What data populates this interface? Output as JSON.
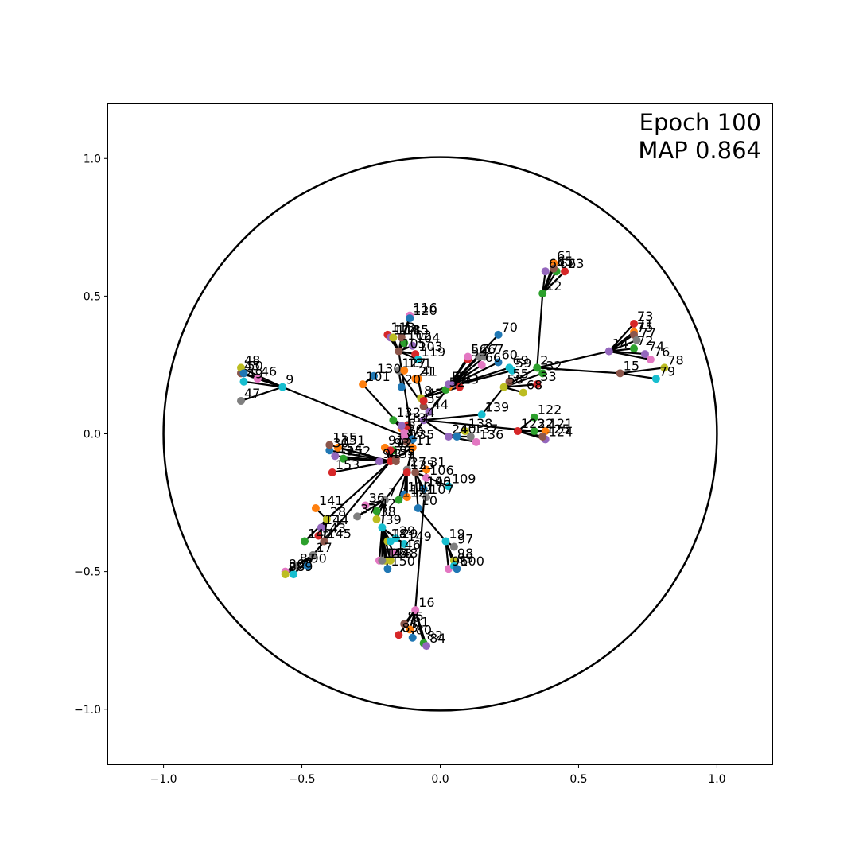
{
  "chart_data": {
    "type": "scatter",
    "title": "",
    "xlabel": "",
    "ylabel": "",
    "xlim": [
      -1.2,
      1.2
    ],
    "ylim": [
      -1.2,
      1.2
    ],
    "grid": false,
    "legend": "none",
    "x_ticks": [
      {
        "value": -1.0,
        "label": "−1.0"
      },
      {
        "value": -0.5,
        "label": "−0.5"
      },
      {
        "value": 0.0,
        "label": "0.0"
      },
      {
        "value": 0.5,
        "label": "0.5"
      },
      {
        "value": 1.0,
        "label": "1.0"
      }
    ],
    "y_ticks": [
      {
        "value": 1.0,
        "label": "1.0"
      },
      {
        "value": 0.5,
        "label": "0.5"
      },
      {
        "value": 0.0,
        "label": "0.0"
      },
      {
        "value": -0.5,
        "label": "−0.5"
      },
      {
        "value": -1.0,
        "label": "−1.0"
      }
    ],
    "annotations": [
      "Epoch 100",
      "MAP 0.864"
    ],
    "unit_circle": {
      "cx": 0,
      "cy": 0,
      "r": 1.0
    },
    "colors": [
      "#1f77b4",
      "#ff7f0e",
      "#2ca02c",
      "#d62728",
      "#9467bd",
      "#8c564b",
      "#e377c2",
      "#7f7f7f",
      "#bcbd22",
      "#17becf"
    ],
    "nodes": [
      {
        "label": "0",
        "x": -0.1,
        "y": -0.02
      },
      {
        "label": "1",
        "x": -0.14,
        "y": 0.02
      },
      {
        "label": "2",
        "x": 0.35,
        "y": 0.24
      },
      {
        "label": "3",
        "x": -0.18,
        "y": -0.1
      },
      {
        "label": "4",
        "x": -0.06,
        "y": 0.05
      },
      {
        "label": "5",
        "x": -0.06,
        "y": 0.1
      },
      {
        "label": "6",
        "x": -0.13,
        "y": 0.01
      },
      {
        "label": "7",
        "x": -0.2,
        "y": -0.24
      },
      {
        "label": "8",
        "x": -0.07,
        "y": 0.13
      },
      {
        "label": "9",
        "x": -0.57,
        "y": 0.17
      },
      {
        "label": "10",
        "x": -0.08,
        "y": -0.27
      },
      {
        "label": "11",
        "x": -0.1,
        "y": -0.05
      },
      {
        "label": "12",
        "x": 0.37,
        "y": 0.51
      },
      {
        "label": "13",
        "x": -0.12,
        "y": 0.03
      },
      {
        "label": "14",
        "x": 0.61,
        "y": 0.3
      },
      {
        "label": "15",
        "x": 0.65,
        "y": 0.22
      },
      {
        "label": "16",
        "x": -0.09,
        "y": -0.64
      },
      {
        "label": "17",
        "x": -0.46,
        "y": -0.44
      },
      {
        "label": "18",
        "x": -0.19,
        "y": -0.39
      },
      {
        "label": "19",
        "x": 0.02,
        "y": -0.39
      },
      {
        "label": "20",
        "x": -0.14,
        "y": 0.17
      },
      {
        "label": "21",
        "x": -0.09,
        "y": 0.2
      },
      {
        "label": "22",
        "x": 0.34,
        "y": 0.01
      },
      {
        "label": "23",
        "x": 0.07,
        "y": 0.17
      },
      {
        "label": "24",
        "x": 0.03,
        "y": -0.01
      },
      {
        "label": "25",
        "x": -0.09,
        "y": -0.14
      },
      {
        "label": "26",
        "x": -0.13,
        "y": -0.01
      },
      {
        "label": "27",
        "x": -0.12,
        "y": -0.13
      },
      {
        "label": "28",
        "x": -0.41,
        "y": -0.31
      },
      {
        "label": "29",
        "x": -0.16,
        "y": -0.38
      },
      {
        "label": "30",
        "x": -0.4,
        "y": -0.06
      },
      {
        "label": "31",
        "x": -0.05,
        "y": -0.13
      },
      {
        "label": "32",
        "x": 0.37,
        "y": 0.22
      },
      {
        "label": "33",
        "x": 0.35,
        "y": 0.18
      },
      {
        "label": "34",
        "x": 0.04,
        "y": 0.18
      },
      {
        "label": "35",
        "x": -0.16,
        "y": -0.1
      },
      {
        "label": "36",
        "x": -0.27,
        "y": -0.26
      },
      {
        "label": "37",
        "x": -0.3,
        "y": -0.3
      },
      {
        "label": "38",
        "x": -0.23,
        "y": -0.31
      },
      {
        "label": "39",
        "x": -0.21,
        "y": -0.34
      },
      {
        "label": "40",
        "x": 0.06,
        "y": -0.01
      },
      {
        "label": "41",
        "x": -0.08,
        "y": 0.2
      },
      {
        "label": "42",
        "x": -0.23,
        "y": -0.28
      },
      {
        "label": "43",
        "x": -0.06,
        "y": 0.12
      },
      {
        "label": "44",
        "x": -0.04,
        "y": 0.08
      },
      {
        "label": "45",
        "x": -0.72,
        "y": 0.22
      },
      {
        "label": "46",
        "x": -0.66,
        "y": 0.2
      },
      {
        "label": "47",
        "x": -0.72,
        "y": 0.12
      },
      {
        "label": "48",
        "x": -0.72,
        "y": 0.24
      },
      {
        "label": "49",
        "x": -0.71,
        "y": 0.19
      },
      {
        "label": "50",
        "x": -0.71,
        "y": 0.22
      },
      {
        "label": "51",
        "x": 0.03,
        "y": 0.17
      },
      {
        "label": "52",
        "x": 0.02,
        "y": 0.16
      },
      {
        "label": "53",
        "x": 0.1,
        "y": 0.27
      },
      {
        "label": "54",
        "x": 0.03,
        "y": 0.18
      },
      {
        "label": "55",
        "x": 0.25,
        "y": 0.19
      },
      {
        "label": "56",
        "x": 0.1,
        "y": 0.28
      },
      {
        "label": "57",
        "x": 0.14,
        "y": 0.28
      },
      {
        "label": "58",
        "x": 0.23,
        "y": 0.17
      },
      {
        "label": "59",
        "x": 0.26,
        "y": 0.23
      },
      {
        "label": "60",
        "x": 0.21,
        "y": 0.26
      },
      {
        "label": "61",
        "x": 0.41,
        "y": 0.62
      },
      {
        "label": "62",
        "x": 0.42,
        "y": 0.59
      },
      {
        "label": "63",
        "x": 0.45,
        "y": 0.59
      },
      {
        "label": "64",
        "x": 0.38,
        "y": 0.59
      },
      {
        "label": "65",
        "x": 0.41,
        "y": 0.6
      },
      {
        "label": "66",
        "x": 0.15,
        "y": 0.25
      },
      {
        "label": "67",
        "x": 0.16,
        "y": 0.28
      },
      {
        "label": "68",
        "x": 0.3,
        "y": 0.15
      },
      {
        "label": "69",
        "x": 0.25,
        "y": 0.24
      },
      {
        "label": "70",
        "x": 0.21,
        "y": 0.36
      },
      {
        "label": "71",
        "x": 0.7,
        "y": 0.37
      },
      {
        "label": "72",
        "x": 0.7,
        "y": 0.31
      },
      {
        "label": "73",
        "x": 0.7,
        "y": 0.4
      },
      {
        "label": "74",
        "x": 0.74,
        "y": 0.29
      },
      {
        "label": "75",
        "x": 0.7,
        "y": 0.36
      },
      {
        "label": "76",
        "x": 0.76,
        "y": 0.27
      },
      {
        "label": "77",
        "x": 0.71,
        "y": 0.34
      },
      {
        "label": "78",
        "x": 0.81,
        "y": 0.24
      },
      {
        "label": "79",
        "x": 0.78,
        "y": 0.2
      },
      {
        "label": "80",
        "x": -0.1,
        "y": -0.74
      },
      {
        "label": "81",
        "x": -0.11,
        "y": -0.71
      },
      {
        "label": "82",
        "x": -0.06,
        "y": -0.76
      },
      {
        "label": "83",
        "x": -0.15,
        "y": -0.73
      },
      {
        "label": "84",
        "x": -0.05,
        "y": -0.77
      },
      {
        "label": "85",
        "x": -0.13,
        "y": -0.69
      },
      {
        "label": "86",
        "x": -0.56,
        "y": -0.5
      },
      {
        "label": "87",
        "x": -0.52,
        "y": -0.48
      },
      {
        "label": "88",
        "x": -0.56,
        "y": -0.51
      },
      {
        "label": "89",
        "x": -0.53,
        "y": -0.51
      },
      {
        "label": "90",
        "x": -0.48,
        "y": -0.48
      },
      {
        "label": "91",
        "x": -0.2,
        "y": -0.05
      },
      {
        "label": "92",
        "x": -0.17,
        "y": -0.06
      },
      {
        "label": "93",
        "x": -0.18,
        "y": -0.06
      },
      {
        "label": "94",
        "x": -0.22,
        "y": -0.1
      },
      {
        "label": "95",
        "x": -0.16,
        "y": -0.09
      },
      {
        "label": "96",
        "x": 0.03,
        "y": -0.49
      },
      {
        "label": "97",
        "x": 0.05,
        "y": -0.41
      },
      {
        "label": "98",
        "x": 0.05,
        "y": -0.46
      },
      {
        "label": "99",
        "x": 0.05,
        "y": -0.48
      },
      {
        "label": "100",
        "x": 0.06,
        "y": -0.49
      },
      {
        "label": "101",
        "x": -0.28,
        "y": 0.18
      },
      {
        "label": "102",
        "x": -0.13,
        "y": 0.33
      },
      {
        "label": "103",
        "x": -0.09,
        "y": 0.29
      },
      {
        "label": "104",
        "x": -0.1,
        "y": 0.32
      },
      {
        "label": "105",
        "x": -0.15,
        "y": 0.3
      },
      {
        "label": "106",
        "x": -0.05,
        "y": -0.16
      },
      {
        "label": "107",
        "x": -0.05,
        "y": -0.23
      },
      {
        "label": "108",
        "x": -0.06,
        "y": -0.2
      },
      {
        "label": "109",
        "x": 0.03,
        "y": -0.19
      },
      {
        "label": "110",
        "x": -0.13,
        "y": -0.22
      },
      {
        "label": "111",
        "x": -0.12,
        "y": -0.23
      },
      {
        "label": "112",
        "x": -0.15,
        "y": -0.24
      },
      {
        "label": "113",
        "x": -0.19,
        "y": 0.36
      },
      {
        "label": "114",
        "x": -0.18,
        "y": 0.35
      },
      {
        "label": "115",
        "x": -0.14,
        "y": 0.35
      },
      {
        "label": "116",
        "x": -0.11,
        "y": 0.43
      },
      {
        "label": "117",
        "x": -0.15,
        "y": 0.23
      },
      {
        "label": "118",
        "x": -0.17,
        "y": 0.35
      },
      {
        "label": "119",
        "x": -0.08,
        "y": 0.27
      },
      {
        "label": "120",
        "x": -0.11,
        "y": 0.42
      },
      {
        "label": "121",
        "x": 0.38,
        "y": 0.01
      },
      {
        "label": "122",
        "x": 0.34,
        "y": 0.06
      },
      {
        "label": "123",
        "x": 0.28,
        "y": 0.01
      },
      {
        "label": "124",
        "x": 0.38,
        "y": -0.02
      },
      {
        "label": "125",
        "x": 0.37,
        "y": -0.01
      },
      {
        "label": "126",
        "x": -0.22,
        "y": -0.46
      },
      {
        "label": "127",
        "x": -0.15,
        "y": 0.23
      },
      {
        "label": "128",
        "x": -0.2,
        "y": -0.46
      },
      {
        "label": "129",
        "x": -0.18,
        "y": -0.39
      },
      {
        "label": "130",
        "x": -0.24,
        "y": 0.21
      },
      {
        "label": "131",
        "x": -0.13,
        "y": 0.23
      },
      {
        "label": "132",
        "x": -0.17,
        "y": 0.05
      },
      {
        "label": "133",
        "x": -0.12,
        "y": -0.14
      },
      {
        "label": "134",
        "x": -0.14,
        "y": 0.03
      },
      {
        "label": "135",
        "x": -0.12,
        "y": -0.03
      },
      {
        "label": "136",
        "x": 0.13,
        "y": -0.03
      },
      {
        "label": "137",
        "x": 0.11,
        "y": -0.01
      },
      {
        "label": "138",
        "x": 0.09,
        "y": 0.01
      },
      {
        "label": "139",
        "x": 0.15,
        "y": 0.07
      },
      {
        "label": "140",
        "x": -0.06,
        "y": -0.2
      },
      {
        "label": "141",
        "x": -0.45,
        "y": -0.27
      },
      {
        "label": "142",
        "x": -0.49,
        "y": -0.39
      },
      {
        "label": "143",
        "x": -0.44,
        "y": -0.37
      },
      {
        "label": "144",
        "x": -0.43,
        "y": -0.34
      },
      {
        "label": "145",
        "x": -0.42,
        "y": -0.39
      },
      {
        "label": "146",
        "x": -0.17,
        "y": -0.43
      },
      {
        "label": "147",
        "x": -0.21,
        "y": -0.46
      },
      {
        "label": "148",
        "x": -0.18,
        "y": -0.46
      },
      {
        "label": "149",
        "x": -0.13,
        "y": -0.4
      },
      {
        "label": "150",
        "x": -0.19,
        "y": -0.49
      },
      {
        "label": "151",
        "x": -0.37,
        "y": -0.05
      },
      {
        "label": "152",
        "x": -0.35,
        "y": -0.09
      },
      {
        "label": "153",
        "x": -0.39,
        "y": -0.14
      },
      {
        "label": "154",
        "x": -0.38,
        "y": -0.08
      },
      {
        "label": "155",
        "x": -0.4,
        "y": -0.04
      }
    ],
    "edges": [
      [
        0,
        1
      ],
      [
        0,
        13
      ],
      [
        0,
        6
      ],
      [
        0,
        11
      ],
      [
        0,
        4
      ],
      [
        13,
        134
      ],
      [
        13,
        132
      ],
      [
        1,
        132
      ],
      [
        13,
        26
      ],
      [
        6,
        135
      ],
      [
        11,
        3
      ],
      [
        11,
        25
      ],
      [
        11,
        27
      ],
      [
        11,
        133
      ],
      [
        4,
        24
      ],
      [
        4,
        44
      ],
      [
        4,
        22
      ],
      [
        44,
        43
      ],
      [
        43,
        8
      ],
      [
        8,
        5
      ],
      [
        5,
        117
      ],
      [
        117,
        127
      ],
      [
        117,
        131
      ],
      [
        117,
        20
      ],
      [
        21,
        41
      ],
      [
        5,
        41
      ],
      [
        8,
        23
      ],
      [
        8,
        34
      ],
      [
        4,
        139
      ],
      [
        139,
        58
      ],
      [
        58,
        68
      ],
      [
        58,
        55
      ],
      [
        58,
        33
      ],
      [
        58,
        32
      ],
      [
        58,
        2
      ],
      [
        2,
        14
      ],
      [
        2,
        12
      ],
      [
        12,
        61
      ],
      [
        12,
        62
      ],
      [
        12,
        63
      ],
      [
        12,
        64
      ],
      [
        12,
        65
      ],
      [
        14,
        71
      ],
      [
        14,
        73
      ],
      [
        14,
        75
      ],
      [
        14,
        72
      ],
      [
        14,
        77
      ],
      [
        14,
        74
      ],
      [
        14,
        76
      ],
      [
        2,
        15
      ],
      [
        15,
        78
      ],
      [
        15,
        79
      ],
      [
        22,
        123
      ],
      [
        123,
        121
      ],
      [
        123,
        122
      ],
      [
        123,
        124
      ],
      [
        123,
        125
      ],
      [
        24,
        40
      ],
      [
        24,
        138
      ],
      [
        24,
        136
      ],
      [
        24,
        137
      ],
      [
        4,
        51
      ],
      [
        51,
        52
      ],
      [
        51,
        53
      ],
      [
        51,
        56
      ],
      [
        51,
        57
      ],
      [
        51,
        66
      ],
      [
        51,
        67
      ],
      [
        51,
        59
      ],
      [
        51,
        60
      ],
      [
        51,
        69
      ],
      [
        51,
        70
      ],
      [
        0,
        9
      ],
      [
        9,
        45
      ],
      [
        9,
        46
      ],
      [
        9,
        47
      ],
      [
        9,
        48
      ],
      [
        9,
        49
      ],
      [
        9,
        50
      ],
      [
        0,
        101
      ],
      [
        101,
        130
      ],
      [
        0,
        105
      ],
      [
        105,
        102
      ],
      [
        105,
        104
      ],
      [
        105,
        103
      ],
      [
        105,
        119
      ],
      [
        105,
        113
      ],
      [
        105,
        114
      ],
      [
        105,
        115
      ],
      [
        105,
        116
      ],
      [
        105,
        118
      ],
      [
        105,
        120
      ],
      [
        3,
        30
      ],
      [
        3,
        151
      ],
      [
        3,
        152
      ],
      [
        3,
        153
      ],
      [
        3,
        154
      ],
      [
        3,
        155
      ],
      [
        3,
        91
      ],
      [
        3,
        92
      ],
      [
        3,
        93
      ],
      [
        3,
        94
      ],
      [
        3,
        95
      ],
      [
        35,
        91
      ],
      [
        25,
        106
      ],
      [
        25,
        31
      ],
      [
        25,
        109
      ],
      [
        25,
        140
      ],
      [
        25,
        108
      ],
      [
        25,
        107
      ],
      [
        25,
        10
      ],
      [
        10,
        19
      ],
      [
        19,
        96
      ],
      [
        19,
        97
      ],
      [
        19,
        98
      ],
      [
        19,
        99
      ],
      [
        19,
        100
      ],
      [
        27,
        110
      ],
      [
        27,
        111
      ],
      [
        27,
        112
      ],
      [
        27,
        7
      ],
      [
        7,
        36
      ],
      [
        7,
        37
      ],
      [
        7,
        38
      ],
      [
        7,
        42
      ],
      [
        7,
        39
      ],
      [
        39,
        18
      ],
      [
        39,
        129
      ],
      [
        39,
        29
      ],
      [
        39,
        149
      ],
      [
        39,
        126
      ],
      [
        39,
        128
      ],
      [
        39,
        146
      ],
      [
        39,
        147
      ],
      [
        39,
        148
      ],
      [
        39,
        150
      ],
      [
        31,
        16
      ],
      [
        16,
        80
      ],
      [
        16,
        81
      ],
      [
        16,
        82
      ],
      [
        16,
        83
      ],
      [
        16,
        84
      ],
      [
        16,
        85
      ],
      [
        3,
        28
      ],
      [
        28,
        141
      ],
      [
        28,
        142
      ],
      [
        28,
        143
      ],
      [
        28,
        144
      ],
      [
        28,
        145
      ],
      [
        3,
        17
      ],
      [
        17,
        86
      ],
      [
        17,
        87
      ],
      [
        17,
        88
      ],
      [
        17,
        89
      ],
      [
        17,
        90
      ]
    ]
  }
}
